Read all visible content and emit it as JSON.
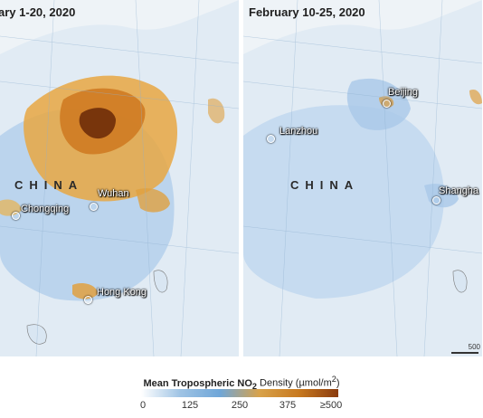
{
  "panels": [
    {
      "title": "ary 1-20, 2020",
      "country_label": "CHINA",
      "cities": [
        "Chongqing",
        "Wuhan",
        "Hong Kong"
      ]
    },
    {
      "title": "February 10-25, 2020",
      "country_label": "CHINA",
      "cities": [
        "Beijing",
        "Lanzhou",
        "Shangha"
      ],
      "scale": "500"
    }
  ],
  "legend": {
    "title_main": "Mean Tropospheric NO",
    "title_sub": "2",
    "title_rest": " Density (µmol/m",
    "title_sup": "2",
    "title_end": ")",
    "ticks": [
      "0",
      "125",
      "250",
      "375",
      "≥500"
    ],
    "colors": [
      "#ffffff",
      "#9ec3e4",
      "#6fa6d8",
      "#d8a24a",
      "#c8791f",
      "#8a3b0e"
    ]
  }
}
